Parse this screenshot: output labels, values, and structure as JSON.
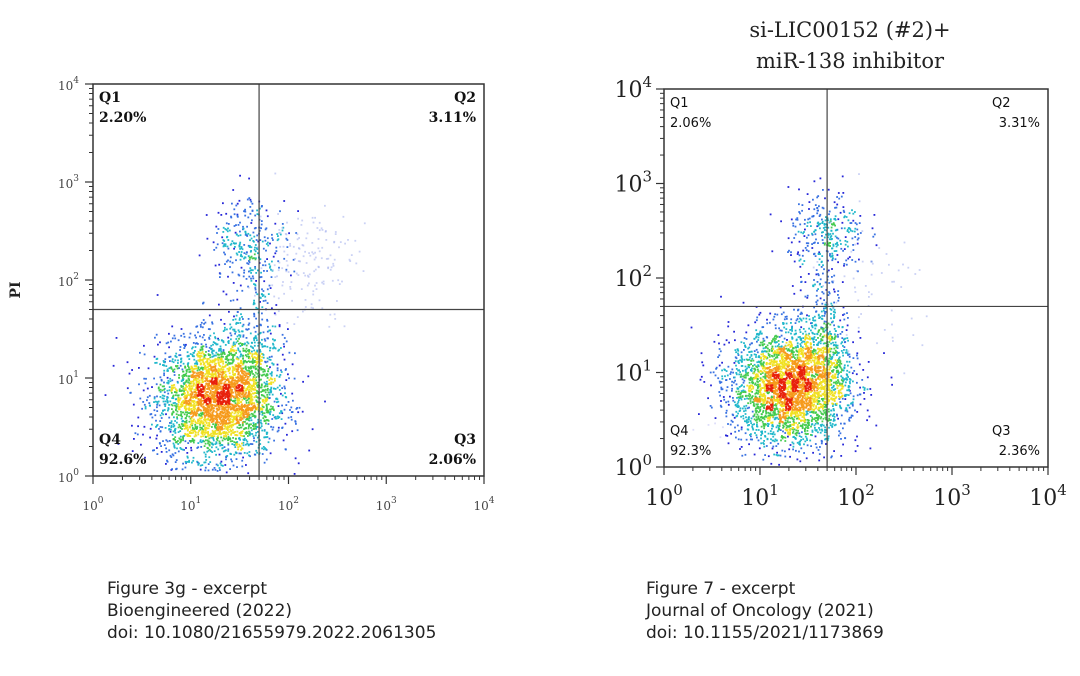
{
  "chart_data": [
    {
      "type": "scatter",
      "subtype": "flow-cytometry-density",
      "title": "",
      "xlabel": "",
      "ylabel": "PI",
      "scale": "log",
      "xlim": [
        1,
        10000
      ],
      "ylim": [
        1,
        10000
      ],
      "xticks": [
        {
          "base": "10",
          "exp": "0"
        },
        {
          "base": "10",
          "exp": "1"
        },
        {
          "base": "10",
          "exp": "2"
        },
        {
          "base": "10",
          "exp": "3"
        },
        {
          "base": "10",
          "exp": "4"
        }
      ],
      "yticks": [
        {
          "base": "10",
          "exp": "0"
        },
        {
          "base": "10",
          "exp": "1"
        },
        {
          "base": "10",
          "exp": "2"
        },
        {
          "base": "10",
          "exp": "3"
        },
        {
          "base": "10",
          "exp": "4"
        }
      ],
      "gate": {
        "x": 50,
        "y": 50
      },
      "quadrants": [
        {
          "name": "Q1",
          "percent": "2.20%",
          "position": "top-left"
        },
        {
          "name": "Q2",
          "percent": "3.11%",
          "position": "top-right"
        },
        {
          "name": "Q3",
          "percent": "2.06%",
          "position": "bottom-right"
        },
        {
          "name": "Q4",
          "percent": "92.6%",
          "position": "bottom-left"
        }
      ],
      "clusters": [
        {
          "cx": 18,
          "cy": 6,
          "sx": 0.3,
          "sy": 0.3,
          "n": 3200
        },
        {
          "cx": 40,
          "cy": 12,
          "sx": 0.18,
          "sy": 0.35,
          "n": 450
        },
        {
          "cx": 40,
          "cy": 250,
          "sx": 0.2,
          "sy": 0.22,
          "n": 260
        },
        {
          "cx": 150,
          "cy": 150,
          "sx": 0.25,
          "sy": 0.3,
          "n": 160,
          "faint": true
        },
        {
          "cx": 45,
          "cy": 60,
          "sx": 0.1,
          "sy": 0.45,
          "n": 70
        }
      ],
      "colors": {
        "sparse": "#1a1ad6",
        "mid": "#19b5c9",
        "dense": "#f0e020",
        "core": "#e8200c"
      }
    },
    {
      "type": "scatter",
      "subtype": "flow-cytometry-density",
      "title": "si-LIC00152 (#2)+\nmiR-138 inhibitor",
      "title_lines": [
        "si-LIC00152 (#2)+",
        "miR-138 inhibitor"
      ],
      "xlabel": "",
      "ylabel": "",
      "scale": "log",
      "xlim": [
        1,
        10000
      ],
      "ylim": [
        1,
        10000
      ],
      "xticks": [
        {
          "base": "10",
          "exp": "0"
        },
        {
          "base": "10",
          "exp": "1"
        },
        {
          "base": "10",
          "exp": "2"
        },
        {
          "base": "10",
          "exp": "3"
        },
        {
          "base": "10",
          "exp": "4"
        }
      ],
      "yticks": [
        {
          "base": "10",
          "exp": "0"
        },
        {
          "base": "10",
          "exp": "1"
        },
        {
          "base": "10",
          "exp": "2"
        },
        {
          "base": "10",
          "exp": "3"
        },
        {
          "base": "10",
          "exp": "4"
        }
      ],
      "gate": {
        "x": 50,
        "y": 50
      },
      "quadrants": [
        {
          "name": "Q1",
          "percent": "2.06%",
          "position": "top-left"
        },
        {
          "name": "Q2",
          "percent": "3.31%",
          "position": "top-right"
        },
        {
          "name": "Q3",
          "percent": "2.36%",
          "position": "bottom-right"
        },
        {
          "name": "Q4",
          "percent": "92.3%",
          "position": "bottom-left"
        }
      ],
      "clusters": [
        {
          "cx": 20,
          "cy": 7,
          "sx": 0.3,
          "sy": 0.3,
          "n": 3200
        },
        {
          "cx": 45,
          "cy": 15,
          "sx": 0.15,
          "sy": 0.35,
          "n": 450
        },
        {
          "cx": 50,
          "cy": 300,
          "sx": 0.2,
          "sy": 0.22,
          "n": 280
        },
        {
          "cx": 150,
          "cy": 60,
          "sx": 0.35,
          "sy": 0.4,
          "n": 60,
          "faint": true
        },
        {
          "cx": 48,
          "cy": 60,
          "sx": 0.08,
          "sy": 0.45,
          "n": 80
        }
      ],
      "colors": {
        "sparse": "#1a1ad6",
        "mid": "#19b5c9",
        "dense": "#f0e020",
        "core": "#e8200c"
      }
    }
  ],
  "captions": [
    {
      "lines": [
        "Figure 3g - excerpt",
        "Bioengineered (2022)",
        "doi: 10.1080/21655979.2022.2061305"
      ]
    },
    {
      "lines": [
        "Figure 7 - excerpt",
        "Journal of Oncology (2021)",
        "doi: 10.1155/2021/1173869"
      ]
    }
  ]
}
